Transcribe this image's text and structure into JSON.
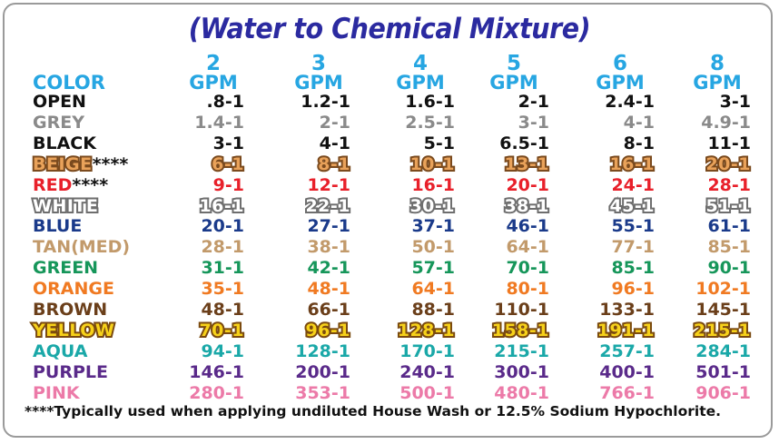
{
  "title": "(Water to Chemical Mixture)",
  "header": {
    "color_label": "COLOR",
    "gpm_label": "GPM",
    "columns": [
      "2",
      "3",
      "4",
      "5",
      "6",
      "8"
    ]
  },
  "rows": [
    {
      "label": "OPEN",
      "stars": "",
      "text_color": "#111111",
      "fill_color": "",
      "values": [
        ".8-1",
        "1.2-1",
        "1.6-1",
        "2-1",
        "2.4-1",
        "3-1"
      ]
    },
    {
      "label": "GREY",
      "stars": "",
      "text_color": "#8a8a8a",
      "fill_color": "",
      "values": [
        "1.4-1",
        "2-1",
        "2.5-1",
        "3-1",
        "4-1",
        "4.9-1"
      ]
    },
    {
      "label": "BLACK",
      "stars": "",
      "text_color": "#111111",
      "fill_color": "",
      "values": [
        "3-1",
        "4-1",
        "5-1",
        "6.5-1",
        "8-1",
        "11-1"
      ]
    },
    {
      "label": "BEIGE",
      "stars": "****",
      "text_color": "#e9a25a",
      "fill_color": "#7a4a1e",
      "values": [
        "6-1",
        "8-1",
        "10-1",
        "13-1",
        "16-1",
        "20-1"
      ]
    },
    {
      "label": "RED",
      "stars": "****",
      "text_color": "#e8202a",
      "fill_color": "",
      "values": [
        "9-1",
        "12-1",
        "16-1",
        "20-1",
        "24-1",
        "28-1"
      ]
    },
    {
      "label": "WHITE",
      "stars": "",
      "text_color": "#ffffff",
      "fill_color": "#6e6e6e",
      "values": [
        "16-1",
        "22-1",
        "30-1",
        "38-1",
        "45-1",
        "51-1"
      ]
    },
    {
      "label": "BLUE",
      "stars": "",
      "text_color": "#1a3a8a",
      "fill_color": "",
      "values": [
        "20-1",
        "27-1",
        "37-1",
        "46-1",
        "55-1",
        "61-1"
      ]
    },
    {
      "label": "TAN(MED)",
      "stars": "",
      "text_color": "#c29a6b",
      "fill_color": "",
      "values": [
        "28-1",
        "38-1",
        "50-1",
        "64-1",
        "77-1",
        "85-1"
      ]
    },
    {
      "label": "GREEN",
      "stars": "",
      "text_color": "#16965a",
      "fill_color": "",
      "values": [
        "31-1",
        "42-1",
        "57-1",
        "70-1",
        "85-1",
        "90-1"
      ]
    },
    {
      "label": "ORANGE",
      "stars": "",
      "text_color": "#f07a22",
      "fill_color": "",
      "values": [
        "35-1",
        "48-1",
        "64-1",
        "80-1",
        "96-1",
        "102-1"
      ]
    },
    {
      "label": "BROWN",
      "stars": "",
      "text_color": "#6b3f1a",
      "fill_color": "",
      "values": [
        "48-1",
        "66-1",
        "88-1",
        "110-1",
        "133-1",
        "145-1"
      ]
    },
    {
      "label": "YELLOW",
      "stars": "",
      "text_color": "#f7d21a",
      "fill_color": "#7a4a10",
      "values": [
        "70-1",
        "96-1",
        "128-1",
        "158-1",
        "191-1",
        "215-1"
      ]
    },
    {
      "label": "AQUA",
      "stars": "",
      "text_color": "#1aa8a8",
      "fill_color": "",
      "values": [
        "94-1",
        "128-1",
        "170-1",
        "215-1",
        "257-1",
        "284-1"
      ]
    },
    {
      "label": "PURPLE",
      "stars": "",
      "text_color": "#5a2a8a",
      "fill_color": "",
      "values": [
        "146-1",
        "200-1",
        "240-1",
        "300-1",
        "400-1",
        "501-1"
      ]
    },
    {
      "label": "PINK",
      "stars": "",
      "text_color": "#ec7aa8",
      "fill_color": "",
      "values": [
        "280-1",
        "353-1",
        "500-1",
        "480-1",
        "766-1",
        "906-1"
      ]
    }
  ],
  "footnote": "****Typically used when applying undiluted House Wash or 12.5% Sodium Hypochlorite."
}
